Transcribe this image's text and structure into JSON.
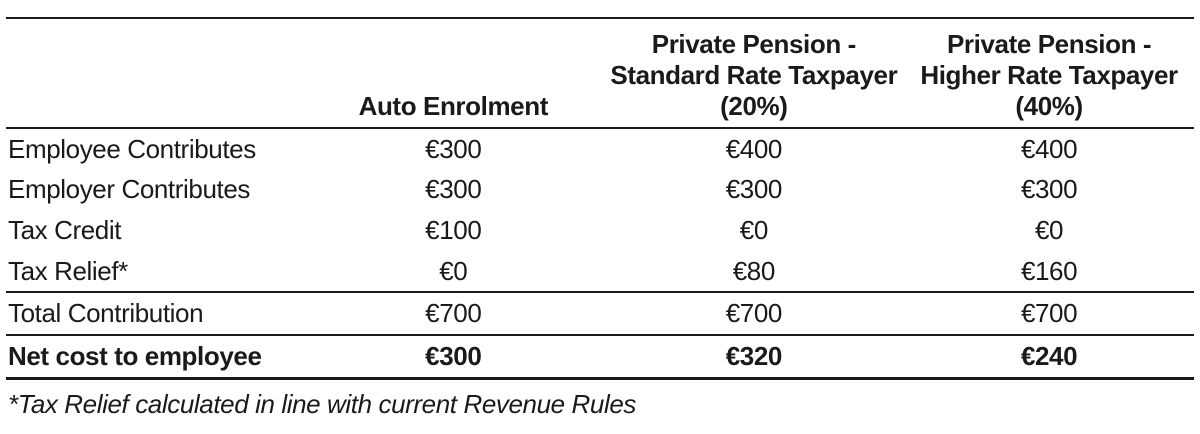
{
  "colors": {
    "background": "#ffffff",
    "text": "#1a1a1a",
    "rule_lines": "#1a1a1a"
  },
  "table": {
    "columns": [
      {
        "lines": [
          "",
          "",
          ""
        ]
      },
      {
        "lines": [
          "",
          "",
          "Auto Enrolment"
        ]
      },
      {
        "lines": [
          "Private Pension -",
          "Standard Rate Taxpayer",
          "(20%)"
        ]
      },
      {
        "lines": [
          "Private Pension -",
          "Higher Rate Taxpayer",
          "(40%)"
        ]
      }
    ],
    "rows": [
      {
        "label": "Employee Contributes",
        "values": [
          "€300",
          "€400",
          "€400"
        ]
      },
      {
        "label": "Employer Contributes",
        "values": [
          "€300",
          "€300",
          "€300"
        ]
      },
      {
        "label": "Tax Credit",
        "values": [
          "€100",
          "€0",
          "€0"
        ]
      },
      {
        "label": "Tax Relief*",
        "values": [
          "€0",
          "€80",
          "€160"
        ]
      },
      {
        "label": "Total Contribution",
        "values": [
          "€700",
          "€700",
          "€700"
        ]
      },
      {
        "label": "Net cost to employee",
        "values": [
          "€300",
          "€320",
          "€240"
        ]
      }
    ],
    "footnote": "*Tax Relief calculated in line with current Revenue Rules"
  },
  "chart_data": {
    "type": "table",
    "title": "",
    "column_headers": [
      "",
      "Auto Enrolment",
      "Private Pension - Standard Rate Taxpayer (20%)",
      "Private Pension - Higher Rate Taxpayer (40%)"
    ],
    "row_headers": [
      "Employee Contributes",
      "Employer Contributes",
      "Tax Credit",
      "Tax Relief*",
      "Total Contribution",
      "Net cost to employee"
    ],
    "values_eur": [
      [
        300,
        400,
        400
      ],
      [
        300,
        300,
        300
      ],
      [
        100,
        0,
        0
      ],
      [
        0,
        80,
        160
      ],
      [
        700,
        700,
        700
      ],
      [
        300,
        320,
        240
      ]
    ],
    "footnote": "*Tax Relief calculated in line with current Revenue Rules"
  }
}
